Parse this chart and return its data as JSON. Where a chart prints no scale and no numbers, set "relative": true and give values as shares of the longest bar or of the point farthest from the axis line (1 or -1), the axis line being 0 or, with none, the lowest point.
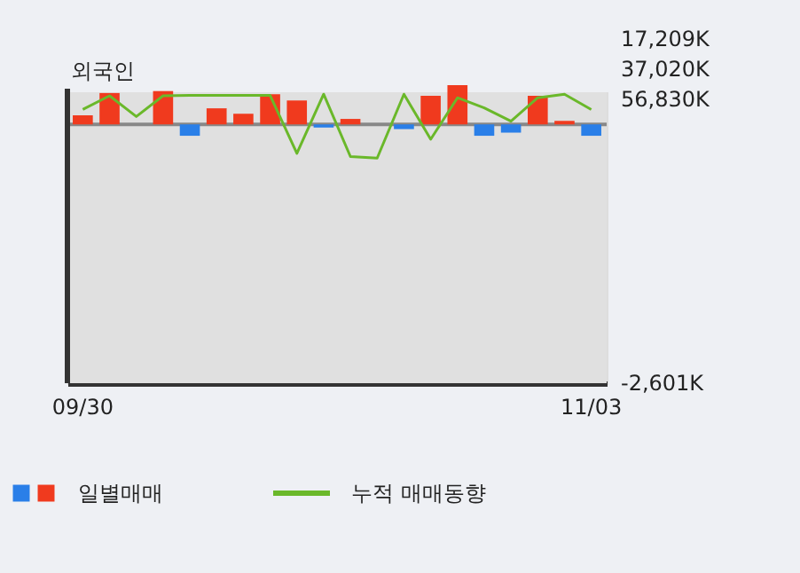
{
  "chart_data": {
    "type": "bar",
    "title": "외국인",
    "relative": true,
    "legend": "bottom",
    "categories": [
      "09/30",
      null,
      null,
      null,
      null,
      null,
      null,
      null,
      null,
      null,
      null,
      null,
      null,
      null,
      null,
      null,
      null,
      null,
      null,
      "11/03"
    ],
    "series": [
      {
        "name": "일별매매",
        "values": [
          0.23,
          0.8,
          0,
          0.85,
          -0.29,
          0.41,
          0.27,
          0.77,
          0.61,
          -0.08,
          0.14,
          0,
          -0.12,
          0.73,
          1,
          -0.29,
          -0.21,
          0.73,
          0.09,
          -0.29
        ],
        "colors": [
          "#f03a1e",
          "#f03a1e",
          "#f03a1e",
          "#f03a1e",
          "#2a7fe8",
          "#f03a1e",
          "#f03a1e",
          "#f03a1e",
          "#f03a1e",
          "#2a7fe8",
          "#f03a1e",
          "#f03a1e",
          "#2a7fe8",
          "#f03a1e",
          "#f03a1e",
          "#2a7fe8",
          "#2a7fe8",
          "#f03a1e",
          "#f03a1e",
          "#2a7fe8"
        ]
      },
      {
        "name": "누적 매매동향",
        "type": "line",
        "color": "#6ab82a",
        "values": [
          0.38,
          0.73,
          0.2,
          0.73,
          0.74,
          0.74,
          0.74,
          0.74,
          -0.74,
          0.77,
          -0.82,
          -0.86,
          0.77,
          -0.38,
          0.68,
          0.42,
          0.08,
          0.68,
          0.77,
          0.38
        ]
      }
    ],
    "annotations": [
      "17,209K",
      "37,020K",
      "56,830K",
      "-2,601K"
    ]
  }
}
